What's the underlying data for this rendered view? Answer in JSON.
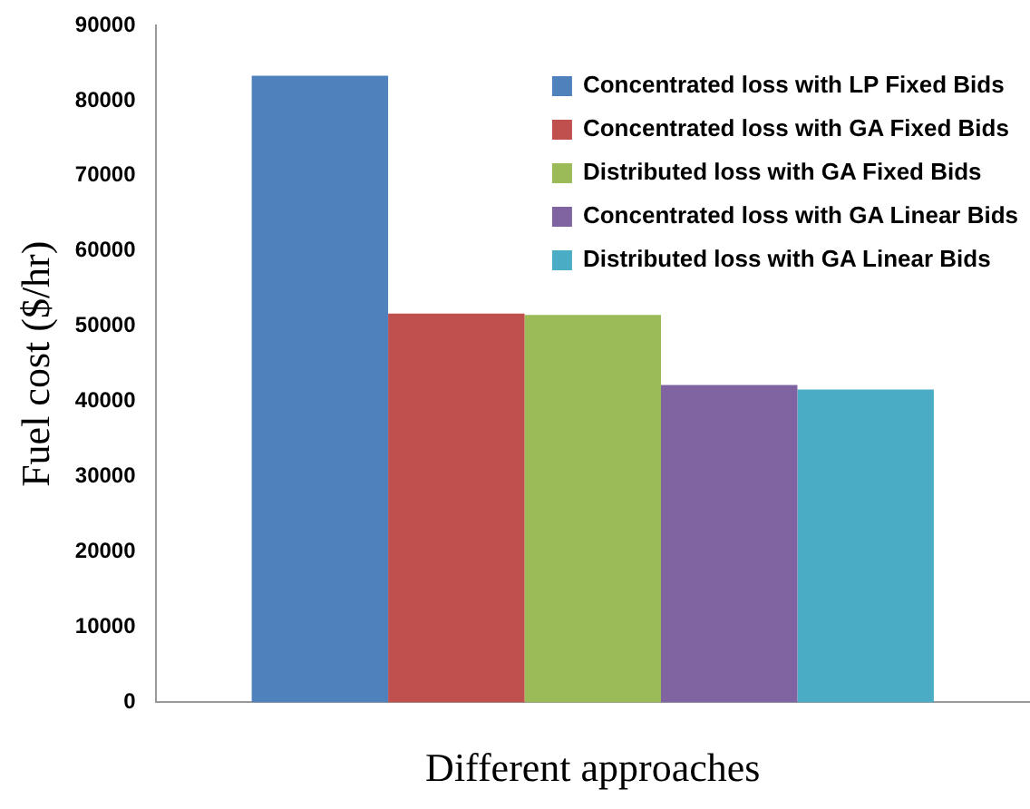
{
  "chart_data": {
    "type": "bar",
    "xlabel": "Different approaches",
    "ylabel": "Fuel cost ($/hr)",
    "categories": [
      null
    ],
    "series": [
      {
        "name": "Concentrated loss with LP Fixed Bids",
        "color": "#4f81bd",
        "values": [
          83300
        ]
      },
      {
        "name": "Concentrated loss with GA Fixed Bids",
        "color": "#c0504d",
        "values": [
          51700
        ]
      },
      {
        "name": "Distributed loss with GA Fixed Bids",
        "color": "#9bbb59",
        "values": [
          51500
        ]
      },
      {
        "name": "Concentrated loss with GA Linear Bids",
        "color": "#8064a2",
        "values": [
          42200
        ]
      },
      {
        "name": "Distributed loss with GA Linear Bids",
        "color": "#4bacc6",
        "values": [
          41600
        ]
      }
    ],
    "ylim": [
      0,
      90000
    ],
    "yticks": [
      0,
      10000,
      20000,
      30000,
      40000,
      50000,
      60000,
      70000,
      80000,
      90000
    ],
    "grid": false,
    "legend": "top right"
  }
}
